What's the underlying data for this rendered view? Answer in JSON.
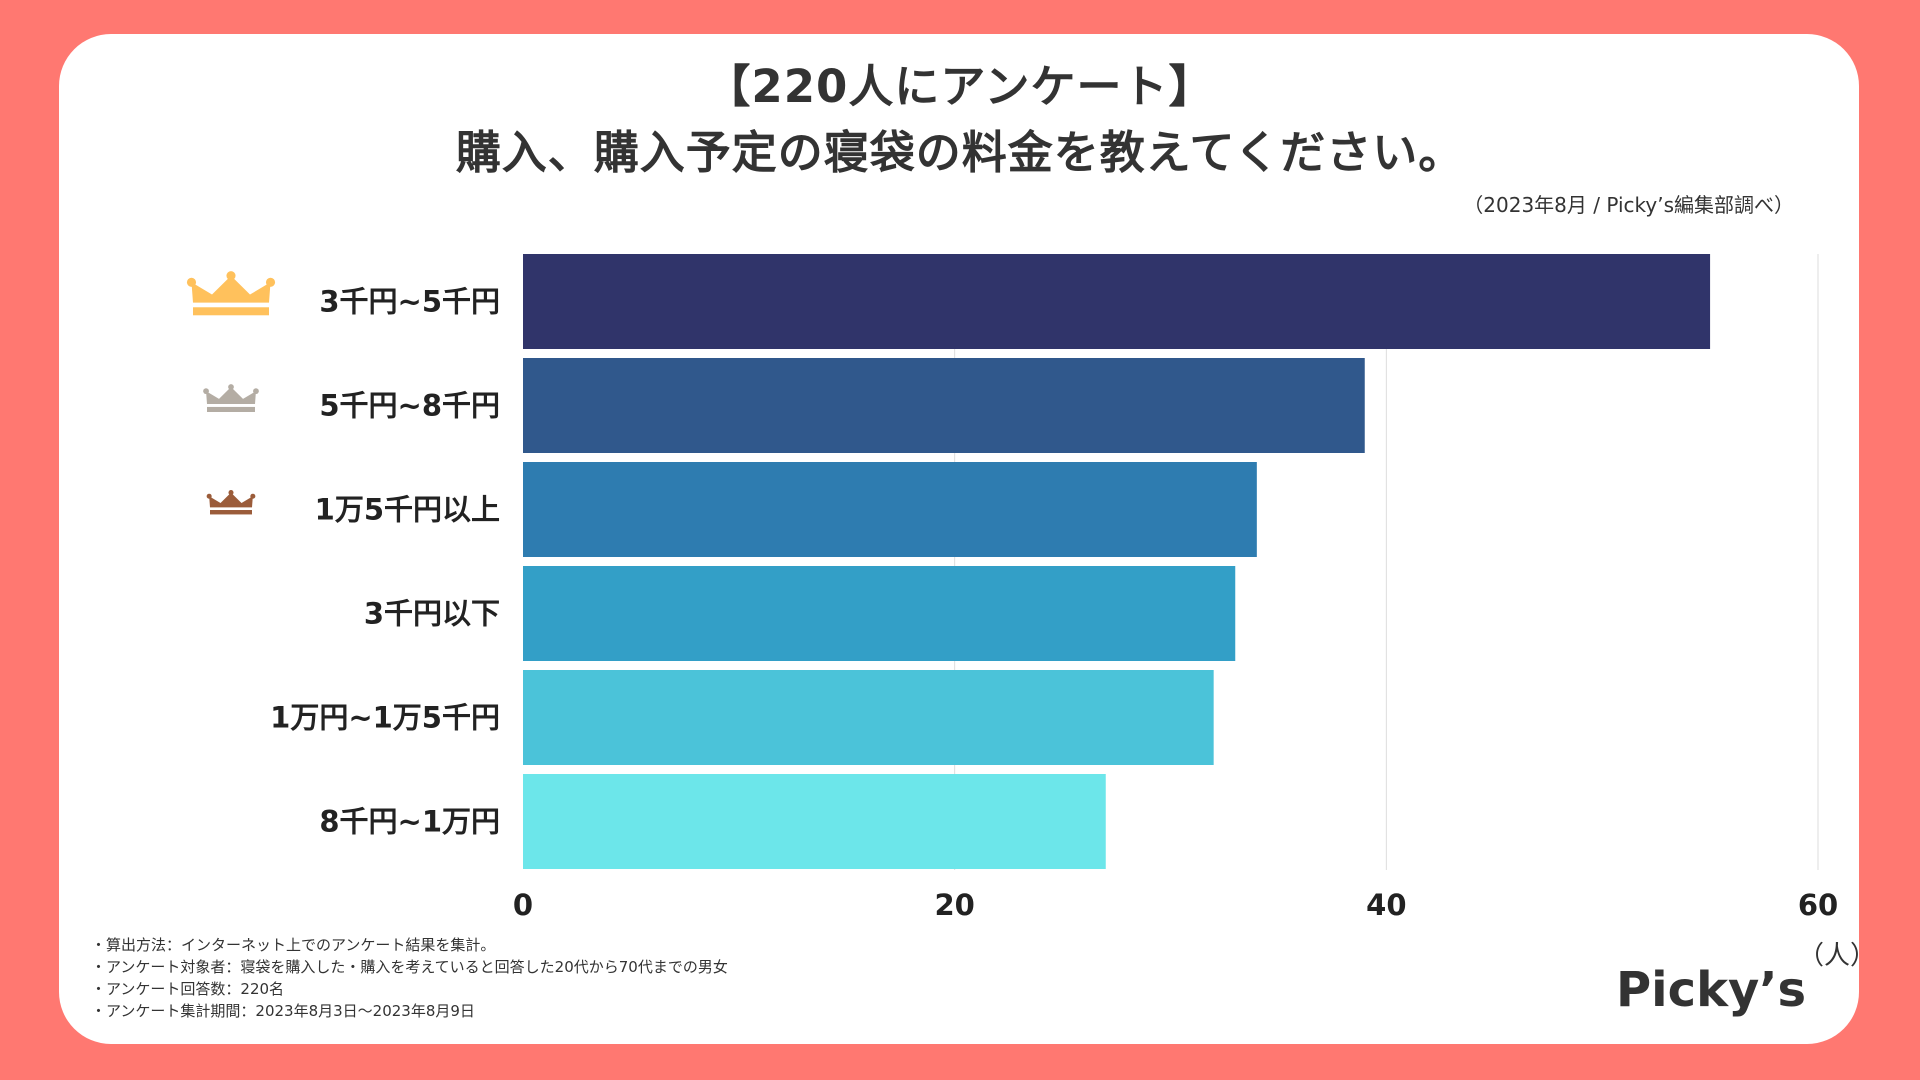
{
  "header": {
    "title_line1": "【220人にアンケート】",
    "title_line2": "購入、購入予定の寝袋の料金を教えてください。",
    "source": "（2023年8月 / Picky’s編集部調べ）"
  },
  "chart_data": {
    "type": "bar",
    "orientation": "horizontal",
    "categories": [
      "3千円~5千円",
      "5千円~8千円",
      "1万5千円以上",
      "3千円以下",
      "1万円~1万5千円",
      "8千円~1万円"
    ],
    "values": [
      55,
      39,
      34,
      33,
      32,
      27
    ],
    "bar_colors": [
      "#30346a",
      "#30588c",
      "#2e7cb0",
      "#339fc7",
      "#4bc3d9",
      "#6ce6ea"
    ],
    "rank_icons": [
      "crown-gold-icon",
      "crown-silver-icon",
      "crown-bronze-icon"
    ],
    "rank_colors": [
      "#ffc15c",
      "#b4ada4",
      "#9b5c3a"
    ],
    "xlim": [
      0,
      60
    ],
    "xticks": [
      0,
      20,
      40,
      60
    ],
    "xlabel": "（人）",
    "grid": true
  },
  "notes": [
    "・算出方法：インターネット上でのアンケート結果を集計。",
    "・アンケート対象者：寝袋を購入した・購入を考えていると回答した20代から70代までの男女",
    "・アンケート回答数：220名",
    "・アンケート集計期間：2023年8月3日〜2023年8月9日"
  ],
  "brand": "Picky’s",
  "colors": {
    "background": "#ff7871",
    "card": "#ffffff",
    "text": "#333333"
  }
}
